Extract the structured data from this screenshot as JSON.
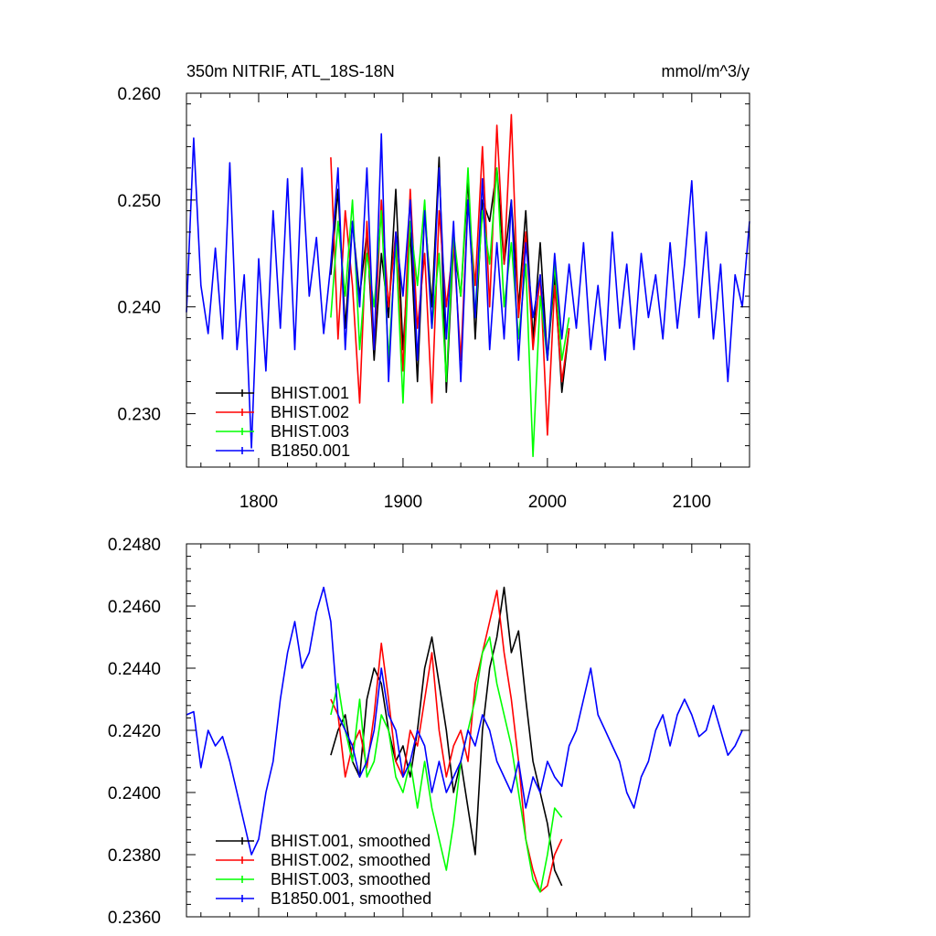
{
  "chart_data": [
    {
      "type": "line",
      "title": "350m NITRIF, ATL_18S-18N",
      "units": "mmol/m^3/y",
      "xlim": [
        1750,
        2140
      ],
      "ylim": [
        0.225,
        0.26
      ],
      "x_ticks": [
        1800,
        1900,
        2000,
        2100
      ],
      "x_tick_labels": [
        "1800",
        "1900",
        "2000",
        "2100"
      ],
      "y_ticks": [
        0.23,
        0.24,
        0.25,
        0.26
      ],
      "y_tick_labels": [
        "0.230",
        "0.240",
        "0.250",
        "0.260"
      ],
      "grid": false,
      "legend_position": "bottom-left",
      "series": [
        {
          "name": "BHIST.001",
          "color": "#000000",
          "x": [
            1850,
            1855,
            1860,
            1865,
            1870,
            1875,
            1880,
            1885,
            1890,
            1895,
            1900,
            1905,
            1910,
            1915,
            1920,
            1925,
            1930,
            1935,
            1940,
            1945,
            1950,
            1955,
            1960,
            1965,
            1970,
            1975,
            1980,
            1985,
            1990,
            1995,
            2000,
            2005,
            2010,
            2015
          ],
          "y": [
            0.243,
            0.251,
            0.238,
            0.248,
            0.241,
            0.247,
            0.235,
            0.245,
            0.239,
            0.251,
            0.236,
            0.247,
            0.233,
            0.249,
            0.24,
            0.254,
            0.232,
            0.246,
            0.241,
            0.252,
            0.237,
            0.25,
            0.248,
            0.253,
            0.244,
            0.25,
            0.24,
            0.249,
            0.237,
            0.246,
            0.235,
            0.243,
            0.232,
            0.238
          ]
        },
        {
          "name": "BHIST.002",
          "color": "#ff0000",
          "x": [
            1850,
            1855,
            1860,
            1865,
            1870,
            1875,
            1880,
            1885,
            1890,
            1895,
            1900,
            1905,
            1910,
            1915,
            1920,
            1925,
            1930,
            1935,
            1940,
            1945,
            1950,
            1955,
            1960,
            1965,
            1970,
            1975,
            1980,
            1985,
            1990,
            1995,
            2000,
            2005,
            2010,
            2015
          ],
          "y": [
            0.254,
            0.237,
            0.249,
            0.242,
            0.231,
            0.248,
            0.236,
            0.25,
            0.24,
            0.247,
            0.234,
            0.251,
            0.238,
            0.245,
            0.231,
            0.249,
            0.24,
            0.246,
            0.235,
            0.25,
            0.242,
            0.255,
            0.24,
            0.257,
            0.244,
            0.258,
            0.239,
            0.247,
            0.236,
            0.243,
            0.228,
            0.242,
            0.233,
            0.238
          ]
        },
        {
          "name": "BHIST.003",
          "color": "#00ff00",
          "x": [
            1850,
            1855,
            1860,
            1865,
            1870,
            1875,
            1880,
            1885,
            1890,
            1895,
            1900,
            1905,
            1910,
            1915,
            1920,
            1925,
            1930,
            1935,
            1940,
            1945,
            1950,
            1955,
            1960,
            1965,
            1970,
            1975,
            1980,
            1985,
            1990,
            1995,
            2000,
            2005,
            2010,
            2015
          ],
          "y": [
            0.239,
            0.248,
            0.241,
            0.25,
            0.236,
            0.245,
            0.24,
            0.249,
            0.235,
            0.246,
            0.231,
            0.248,
            0.242,
            0.25,
            0.238,
            0.245,
            0.233,
            0.247,
            0.241,
            0.253,
            0.239,
            0.249,
            0.244,
            0.253,
            0.24,
            0.246,
            0.237,
            0.244,
            0.226,
            0.241,
            0.235,
            0.244,
            0.235,
            0.239
          ]
        },
        {
          "name": "B1850.001",
          "color": "#0000ff",
          "x": [
            1750,
            1755,
            1760,
            1765,
            1770,
            1775,
            1780,
            1785,
            1790,
            1795,
            1800,
            1805,
            1810,
            1815,
            1820,
            1825,
            1830,
            1835,
            1840,
            1845,
            1850,
            1855,
            1860,
            1865,
            1870,
            1875,
            1880,
            1885,
            1890,
            1895,
            1900,
            1905,
            1910,
            1915,
            1920,
            1925,
            1930,
            1935,
            1940,
            1945,
            1950,
            1955,
            1960,
            1965,
            1970,
            1975,
            1980,
            1985,
            1990,
            1995,
            2000,
            2005,
            2010,
            2015,
            2020,
            2025,
            2030,
            2035,
            2040,
            2045,
            2050,
            2055,
            2060,
            2065,
            2070,
            2075,
            2080,
            2085,
            2090,
            2095,
            2100,
            2105,
            2110,
            2115,
            2120,
            2125,
            2130,
            2135,
            2140
          ],
          "y": [
            0.2395,
            0.2558,
            0.242,
            0.2375,
            0.2455,
            0.237,
            0.2535,
            0.236,
            0.243,
            0.2268,
            0.2445,
            0.234,
            0.249,
            0.238,
            0.252,
            0.236,
            0.253,
            0.241,
            0.2465,
            0.2375,
            0.244,
            0.253,
            0.236,
            0.248,
            0.24,
            0.253,
            0.236,
            0.2562,
            0.233,
            0.247,
            0.241,
            0.25,
            0.235,
            0.249,
            0.238,
            0.253,
            0.237,
            0.248,
            0.233,
            0.25,
            0.239,
            0.252,
            0.236,
            0.246,
            0.237,
            0.25,
            0.235,
            0.246,
            0.239,
            0.243,
            0.235,
            0.245,
            0.237,
            0.244,
            0.238,
            0.246,
            0.236,
            0.242,
            0.235,
            0.247,
            0.238,
            0.244,
            0.236,
            0.245,
            0.239,
            0.243,
            0.237,
            0.246,
            0.238,
            0.244,
            0.2518,
            0.239,
            0.247,
            0.237,
            0.244,
            0.233,
            0.243,
            0.24,
            0.248
          ]
        }
      ]
    },
    {
      "type": "line",
      "title": "",
      "xlim": [
        1750,
        2140
      ],
      "ylim": [
        0.236,
        0.248
      ],
      "x_ticks": [
        1800,
        1900,
        2000,
        2100
      ],
      "x_tick_labels": [
        "",
        "",
        "",
        ""
      ],
      "y_ticks": [
        0.236,
        0.238,
        0.24,
        0.242,
        0.244,
        0.246,
        0.248
      ],
      "y_tick_labels": [
        "0.2360",
        "0.2380",
        "0.2400",
        "0.2420",
        "0.2440",
        "0.2460",
        "0.2480"
      ],
      "grid": false,
      "legend_position": "bottom-left",
      "series": [
        {
          "name": "BHIST.001, smoothed",
          "color": "#000000",
          "x": [
            1850,
            1855,
            1860,
            1865,
            1870,
            1875,
            1880,
            1885,
            1890,
            1895,
            1900,
            1905,
            1910,
            1915,
            1920,
            1925,
            1930,
            1935,
            1940,
            1945,
            1950,
            1955,
            1960,
            1965,
            1970,
            1975,
            1980,
            1985,
            1990,
            1995,
            2000,
            2005,
            2010
          ],
          "y": [
            0.2412,
            0.242,
            0.2425,
            0.241,
            0.2405,
            0.243,
            0.244,
            0.2435,
            0.242,
            0.241,
            0.2415,
            0.2405,
            0.242,
            0.244,
            0.245,
            0.2435,
            0.242,
            0.24,
            0.241,
            0.2395,
            0.238,
            0.242,
            0.244,
            0.245,
            0.2466,
            0.2445,
            0.2452,
            0.243,
            0.241,
            0.24,
            0.239,
            0.2375,
            0.237
          ]
        },
        {
          "name": "BHIST.002, smoothed",
          "color": "#ff0000",
          "x": [
            1850,
            1855,
            1860,
            1865,
            1870,
            1875,
            1880,
            1885,
            1890,
            1895,
            1900,
            1905,
            1910,
            1915,
            1920,
            1925,
            1930,
            1935,
            1940,
            1945,
            1950,
            1955,
            1960,
            1965,
            1970,
            1975,
            1980,
            1985,
            1990,
            1995,
            2000,
            2005,
            2010
          ],
          "y": [
            0.243,
            0.2425,
            0.2405,
            0.2415,
            0.242,
            0.2408,
            0.2425,
            0.2448,
            0.243,
            0.241,
            0.2405,
            0.242,
            0.2415,
            0.243,
            0.2445,
            0.242,
            0.2405,
            0.2415,
            0.242,
            0.241,
            0.2435,
            0.2445,
            0.2455,
            0.2465,
            0.2445,
            0.243,
            0.241,
            0.2385,
            0.2375,
            0.2368,
            0.237,
            0.238,
            0.2385
          ]
        },
        {
          "name": "BHIST.003, smoothed",
          "color": "#00ff00",
          "x": [
            1850,
            1855,
            1860,
            1865,
            1870,
            1875,
            1880,
            1885,
            1890,
            1895,
            1900,
            1905,
            1910,
            1915,
            1920,
            1925,
            1930,
            1935,
            1940,
            1945,
            1950,
            1955,
            1960,
            1965,
            1970,
            1975,
            1980,
            1985,
            1990,
            1995,
            2000,
            2005,
            2010
          ],
          "y": [
            0.2425,
            0.2435,
            0.242,
            0.241,
            0.243,
            0.2405,
            0.241,
            0.2425,
            0.242,
            0.2405,
            0.24,
            0.241,
            0.2395,
            0.241,
            0.2395,
            0.2385,
            0.2375,
            0.239,
            0.241,
            0.242,
            0.243,
            0.2445,
            0.245,
            0.2435,
            0.2425,
            0.2415,
            0.24,
            0.2385,
            0.2372,
            0.2368,
            0.238,
            0.2395,
            0.2392
          ]
        },
        {
          "name": "B1850.001, smoothed",
          "color": "#0000ff",
          "x": [
            1750,
            1755,
            1760,
            1765,
            1770,
            1775,
            1780,
            1785,
            1790,
            1795,
            1800,
            1805,
            1810,
            1815,
            1820,
            1825,
            1830,
            1835,
            1840,
            1845,
            1850,
            1855,
            1860,
            1865,
            1870,
            1875,
            1880,
            1885,
            1890,
            1895,
            1900,
            1905,
            1910,
            1915,
            1920,
            1925,
            1930,
            1935,
            1940,
            1945,
            1950,
            1955,
            1960,
            1965,
            1970,
            1975,
            1980,
            1985,
            1990,
            1995,
            2000,
            2005,
            2010,
            2015,
            2020,
            2025,
            2030,
            2035,
            2040,
            2045,
            2050,
            2055,
            2060,
            2065,
            2070,
            2075,
            2080,
            2085,
            2090,
            2095,
            2100,
            2105,
            2110,
            2115,
            2120,
            2125,
            2130,
            2135
          ],
          "y": [
            0.2425,
            0.2426,
            0.2408,
            0.242,
            0.2415,
            0.2418,
            0.241,
            0.24,
            0.239,
            0.238,
            0.2385,
            0.24,
            0.241,
            0.243,
            0.2445,
            0.2455,
            0.244,
            0.2445,
            0.2458,
            0.2466,
            0.2455,
            0.2425,
            0.242,
            0.2415,
            0.2405,
            0.241,
            0.242,
            0.244,
            0.2425,
            0.242,
            0.2405,
            0.241,
            0.242,
            0.2415,
            0.24,
            0.241,
            0.24,
            0.2405,
            0.241,
            0.242,
            0.2415,
            0.2425,
            0.242,
            0.241,
            0.2405,
            0.24,
            0.241,
            0.2395,
            0.2405,
            0.24,
            0.241,
            0.2405,
            0.2402,
            0.2415,
            0.242,
            0.243,
            0.244,
            0.2425,
            0.242,
            0.2415,
            0.241,
            0.24,
            0.2395,
            0.2405,
            0.241,
            0.242,
            0.2425,
            0.2415,
            0.2425,
            0.243,
            0.2425,
            0.2418,
            0.242,
            0.2428,
            0.242,
            0.2412,
            0.2415,
            0.242
          ]
        }
      ]
    }
  ]
}
